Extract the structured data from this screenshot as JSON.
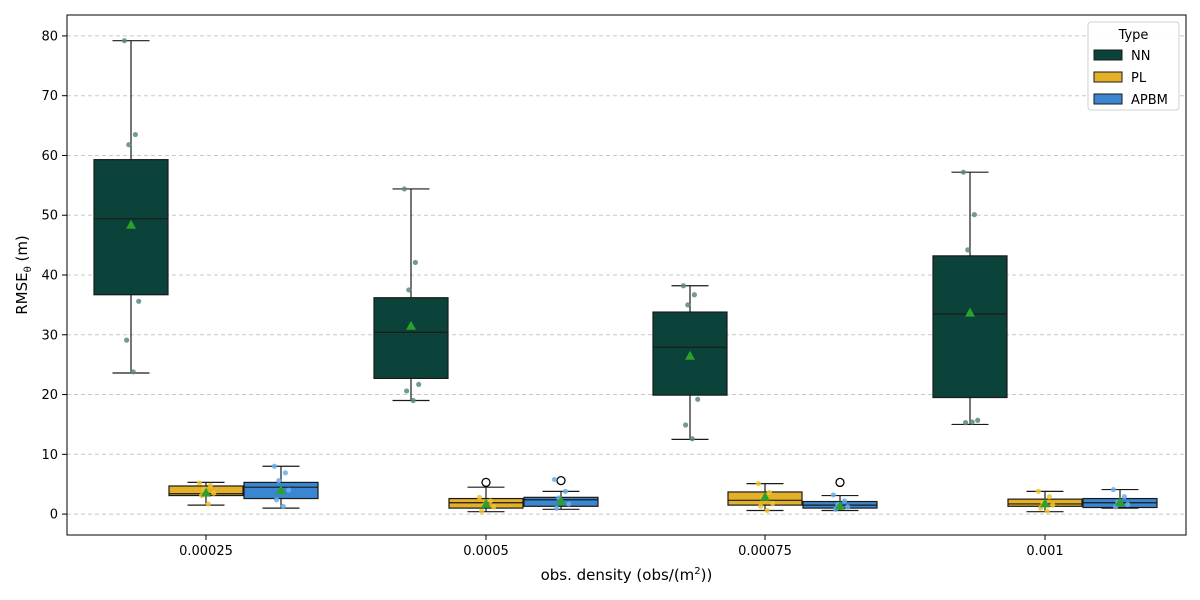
{
  "chart_data": {
    "type": "box",
    "xlabel": "obs. density (obs/(m",
    "xlabel_sup": "2",
    "xlabel_end": "))",
    "ylabel": "RMSE",
    "ylabel_sub": "θ",
    "ylabel_end": " (m)",
    "ylim": [
      -3.5,
      83.5
    ],
    "yticks": [
      0,
      10,
      20,
      30,
      40,
      50,
      60,
      70,
      80
    ],
    "grid": "y-dashed",
    "categories": [
      "0.00025",
      "0.0005",
      "0.00075",
      "0.001"
    ],
    "legend": {
      "title": "Type",
      "position": "top-right"
    },
    "series": [
      {
        "name": "NN",
        "color": "#0b4239",
        "point_color": "#5a8a80",
        "boxes": [
          {
            "q1": 36.7,
            "median": 49.4,
            "q3": 59.3,
            "whisker_low": 23.6,
            "whisker_high": 79.2,
            "mean": 48.4,
            "outliers": [],
            "points": [
              79.2,
              63.5,
              61.8,
              35.6,
              29.1,
              23.8
            ]
          },
          {
            "q1": 22.7,
            "median": 30.4,
            "q3": 36.2,
            "whisker_low": 19.0,
            "whisker_high": 54.4,
            "mean": 31.5,
            "outliers": [],
            "points": [
              54.4,
              42.1,
              37.5,
              21.7,
              20.6,
              19.0
            ]
          },
          {
            "q1": 19.9,
            "median": 27.9,
            "q3": 33.8,
            "whisker_low": 12.5,
            "whisker_high": 38.2,
            "mean": 26.5,
            "outliers": [],
            "points": [
              38.2,
              36.7,
              35.0,
              19.2,
              14.9,
              12.6
            ]
          },
          {
            "q1": 19.5,
            "median": 33.5,
            "q3": 43.2,
            "whisker_low": 15.0,
            "whisker_high": 57.2,
            "mean": 33.7,
            "outliers": [],
            "points": [
              57.2,
              50.1,
              44.2,
              15.7,
              15.3,
              15.4
            ]
          }
        ]
      },
      {
        "name": "PL",
        "color": "#e3b028",
        "point_color": "#f2c62a",
        "boxes": [
          {
            "q1": 3.1,
            "median": 3.4,
            "q3": 4.7,
            "whisker_low": 1.5,
            "whisker_high": 5.3,
            "mean": 3.6,
            "outliers": [],
            "points": [
              5.2,
              4.8,
              4.2,
              3.5,
              3.1,
              1.7
            ]
          },
          {
            "q1": 1.0,
            "median": 1.9,
            "q3": 2.6,
            "whisker_low": 0.4,
            "whisker_high": 4.5,
            "mean": 1.7,
            "outliers": [
              5.3
            ],
            "points": [
              2.8,
              2.2,
              1.5,
              1.2,
              0.5
            ]
          },
          {
            "q1": 1.5,
            "median": 2.3,
            "q3": 3.7,
            "whisker_low": 0.6,
            "whisker_high": 5.1,
            "mean": 2.9,
            "outliers": [],
            "points": [
              5.1,
              3.6,
              2.7,
              1.8,
              1.3,
              0.6
            ]
          },
          {
            "q1": 1.3,
            "median": 1.7,
            "q3": 2.5,
            "whisker_low": 0.4,
            "whisker_high": 3.8,
            "mean": 1.8,
            "outliers": [],
            "points": [
              3.8,
              2.9,
              1.9,
              1.5,
              1.0,
              0.5
            ]
          }
        ]
      },
      {
        "name": "APBM",
        "color": "#3a86d0",
        "point_color": "#6aaee8",
        "boxes": [
          {
            "q1": 2.6,
            "median": 4.5,
            "q3": 5.3,
            "whisker_low": 1.0,
            "whisker_high": 8.0,
            "mean": 4.0,
            "outliers": [],
            "points": [
              8.0,
              6.9,
              5.6,
              4.0,
              2.4,
              1.3
            ]
          },
          {
            "q1": 1.3,
            "median": 2.4,
            "q3": 2.8,
            "whisker_low": 0.8,
            "whisker_high": 3.8,
            "mean": 2.2,
            "outliers": [
              5.6
            ],
            "points": [
              5.8,
              3.8,
              2.7,
              1.7,
              1.0
            ]
          },
          {
            "q1": 1.0,
            "median": 1.5,
            "q3": 2.1,
            "whisker_low": 0.6,
            "whisker_high": 3.1,
            "mean": 1.4,
            "outliers": [
              5.3
            ],
            "points": [
              3.2,
              2.2,
              1.6,
              1.2,
              0.8
            ]
          },
          {
            "q1": 1.1,
            "median": 1.9,
            "q3": 2.6,
            "whisker_low": 1.0,
            "whisker_high": 4.1,
            "mean": 2.0,
            "outliers": [],
            "points": [
              4.1,
              2.9,
              2.0,
              1.6,
              1.2
            ]
          }
        ]
      }
    ],
    "mean_marker_color": "#2ca02c"
  }
}
